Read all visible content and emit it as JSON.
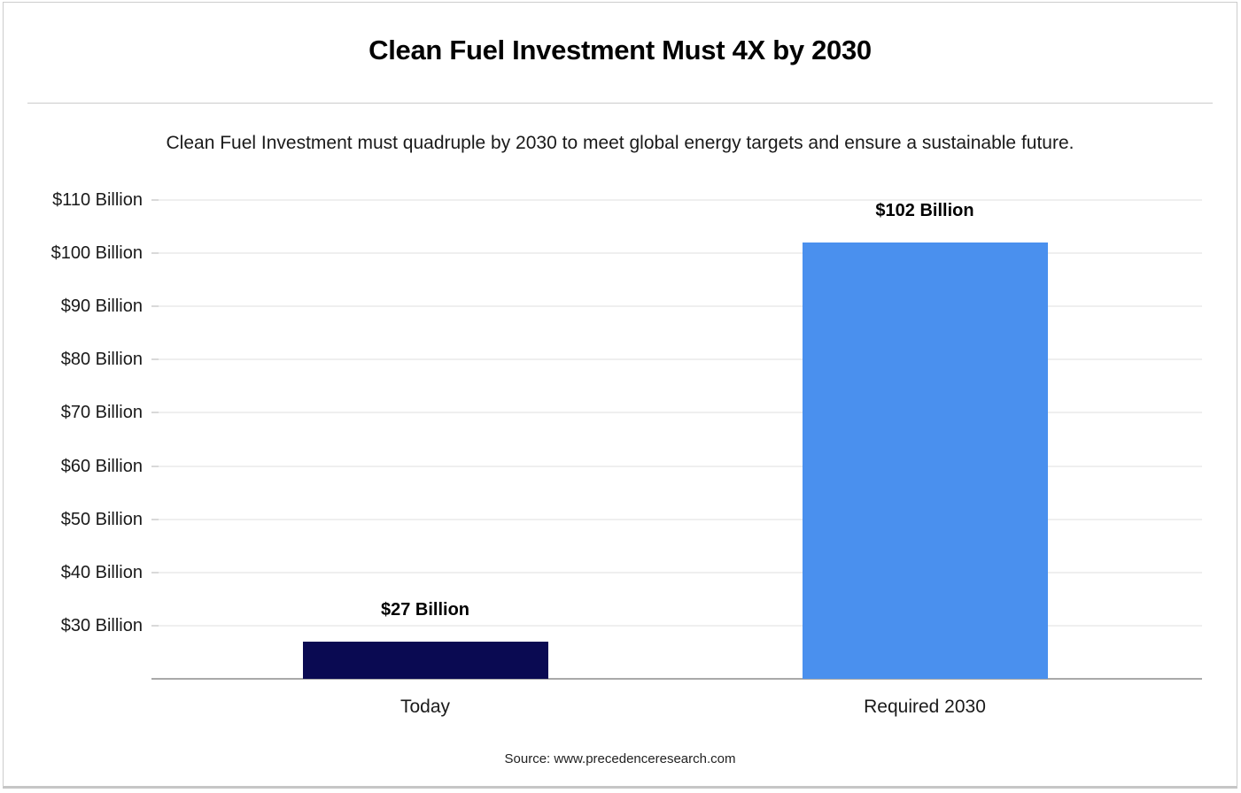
{
  "header": {
    "title": "Clean Fuel Investment Must 4X by 2030",
    "subtitle": "Clean Fuel Investment must quadruple by 2030 to meet global energy targets and ensure a sustainable future."
  },
  "footer": {
    "source": "Source: www.precedenceresearch.com"
  },
  "colors": {
    "bar_today": "#0A0A52",
    "bar_required_2030": "#4A90EE",
    "gridline": "#efefef",
    "axis_line": "#a9a9a9",
    "card_border": "#cccccc"
  },
  "chart_data": {
    "type": "bar",
    "title": "Clean Fuel Investment Must 4X by 2030",
    "subtitle": "Clean Fuel Investment must quadruple by 2030 to meet global energy targets and ensure a sustainable future.",
    "categories": [
      "Today",
      "Required 2030"
    ],
    "values": [
      27,
      102
    ],
    "value_labels": [
      "$27 Billion",
      "$102 Billion"
    ],
    "bar_colors": [
      "#0A0A52",
      "#4A90EE"
    ],
    "unit": "USD Billion",
    "xlabel": "",
    "ylabel": "",
    "ylim": [
      20,
      115
    ],
    "grid": true,
    "legend": "none",
    "yticks": [
      {
        "value": 110,
        "label": "$110 Billion"
      },
      {
        "value": 100,
        "label": "$100 Billion"
      },
      {
        "value": 90,
        "label": "$90 Billion"
      },
      {
        "value": 80,
        "label": "$80 Billion"
      },
      {
        "value": 70,
        "label": "$70 Billion"
      },
      {
        "value": 60,
        "label": "$60 Billion"
      },
      {
        "value": 50,
        "label": "$50 Billion"
      },
      {
        "value": 40,
        "label": "$40 Billion"
      },
      {
        "value": 30,
        "label": "$30 Billion"
      }
    ],
    "source": "Source: www.precedenceresearch.com"
  }
}
